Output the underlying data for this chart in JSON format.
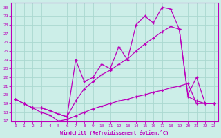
{
  "xlabel": "Windchill (Refroidissement éolien,°C)",
  "bg_color": "#cceee8",
  "grid_color": "#aad8d0",
  "line_color": "#bb00bb",
  "xlim": [
    -0.5,
    23.5
  ],
  "ylim": [
    17,
    30.5
  ],
  "xticks": [
    0,
    1,
    2,
    3,
    4,
    5,
    6,
    7,
    8,
    9,
    10,
    11,
    12,
    13,
    14,
    15,
    16,
    17,
    18,
    19,
    20,
    21,
    22,
    23
  ],
  "yticks": [
    17,
    18,
    19,
    20,
    21,
    22,
    23,
    24,
    25,
    26,
    27,
    28,
    29,
    30
  ],
  "line1_x": [
    0,
    1,
    2,
    3,
    4,
    5,
    6,
    7,
    8,
    9,
    10,
    11,
    12,
    13,
    14,
    15,
    16,
    17,
    18,
    19,
    20,
    21,
    22,
    23
  ],
  "line1_y": [
    19.5,
    19.0,
    18.5,
    18.0,
    17.7,
    17.0,
    17.2,
    17.6,
    18.0,
    18.4,
    18.7,
    19.0,
    19.3,
    19.5,
    19.8,
    20.0,
    20.3,
    20.5,
    20.8,
    21.0,
    21.3,
    19.0,
    19.0,
    19.0
  ],
  "line2_x": [
    0,
    1,
    2,
    3,
    4,
    5,
    6,
    7,
    8,
    9,
    10,
    11,
    12,
    13,
    14,
    15,
    16,
    17,
    18,
    19,
    20,
    21,
    22,
    23
  ],
  "line2_y": [
    19.5,
    19.0,
    18.5,
    18.5,
    18.2,
    17.8,
    17.5,
    19.3,
    20.7,
    21.5,
    22.3,
    22.8,
    23.5,
    24.1,
    25.0,
    25.8,
    26.5,
    27.2,
    27.8,
    27.5,
    19.8,
    19.3,
    19.0,
    19.0
  ],
  "line3_x": [
    0,
    1,
    2,
    3,
    4,
    5,
    6,
    7,
    8,
    9,
    10,
    11,
    12,
    13,
    14,
    15,
    16,
    17,
    18,
    19,
    20,
    21,
    22,
    23
  ],
  "line3_y": [
    19.5,
    19.0,
    18.5,
    18.5,
    18.2,
    17.8,
    17.5,
    24.0,
    21.5,
    22.0,
    23.5,
    23.0,
    25.5,
    24.0,
    28.0,
    29.0,
    28.2,
    30.0,
    29.8,
    27.5,
    20.0,
    22.0,
    19.0,
    19.0
  ]
}
